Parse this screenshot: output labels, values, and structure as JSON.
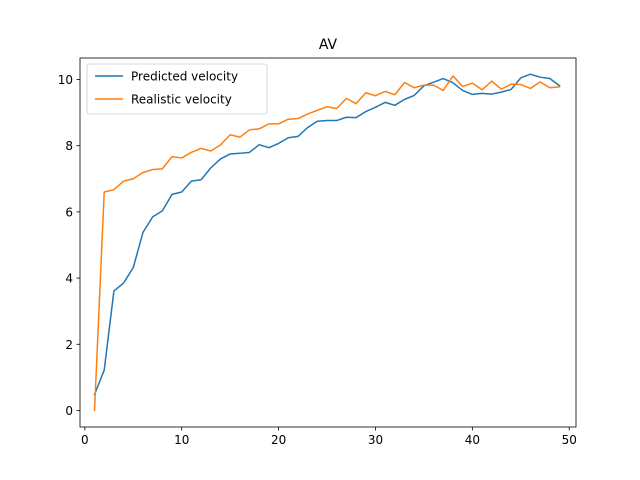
{
  "chart_data": {
    "type": "line",
    "title": "AV",
    "xlabel": "",
    "ylabel": "",
    "xlim": [
      -0.5,
      50.7
    ],
    "ylim": [
      -0.5,
      10.65
    ],
    "xticks": [
      0,
      10,
      20,
      30,
      40,
      50
    ],
    "yticks": [
      0,
      2,
      4,
      6,
      8,
      10
    ],
    "grid": false,
    "legend_position": "top-left",
    "x": [
      1,
      2,
      3,
      4,
      5,
      6,
      7,
      8,
      9,
      10,
      11,
      12,
      13,
      14,
      15,
      16,
      17,
      18,
      19,
      20,
      21,
      22,
      23,
      24,
      25,
      26,
      27,
      28,
      29,
      30,
      31,
      32,
      33,
      34,
      35,
      36,
      37,
      38,
      39,
      40,
      41,
      42,
      43,
      44,
      45,
      46,
      47,
      48,
      49
    ],
    "series": [
      {
        "name": "Predicted velocity",
        "color": "#1f77b4",
        "values": [
          0.48,
          1.22,
          3.61,
          3.85,
          4.32,
          5.38,
          5.85,
          6.03,
          6.53,
          6.6,
          6.93,
          6.97,
          7.33,
          7.6,
          7.75,
          7.77,
          7.8,
          8.03,
          7.94,
          8.07,
          8.24,
          8.28,
          8.55,
          8.74,
          8.76,
          8.76,
          8.86,
          8.85,
          9.03,
          9.16,
          9.31,
          9.22,
          9.4,
          9.52,
          9.81,
          9.92,
          10.03,
          9.9,
          9.67,
          9.55,
          9.58,
          9.56,
          9.62,
          9.7,
          10.05,
          10.16,
          10.07,
          10.03,
          9.81
        ]
      },
      {
        "name": "Realistic velocity",
        "color": "#ff7f0e",
        "values": [
          0.0,
          6.6,
          6.67,
          6.93,
          7.0,
          7.19,
          7.28,
          7.3,
          7.67,
          7.63,
          7.8,
          7.92,
          7.84,
          8.02,
          8.33,
          8.26,
          8.48,
          8.51,
          8.66,
          8.66,
          8.8,
          8.82,
          8.96,
          9.07,
          9.18,
          9.12,
          9.43,
          9.27,
          9.6,
          9.51,
          9.64,
          9.54,
          9.91,
          9.75,
          9.83,
          9.83,
          9.67,
          10.11,
          9.79,
          9.89,
          9.69,
          9.95,
          9.71,
          9.86,
          9.85,
          9.73,
          9.93,
          9.75,
          9.78
        ]
      }
    ]
  }
}
